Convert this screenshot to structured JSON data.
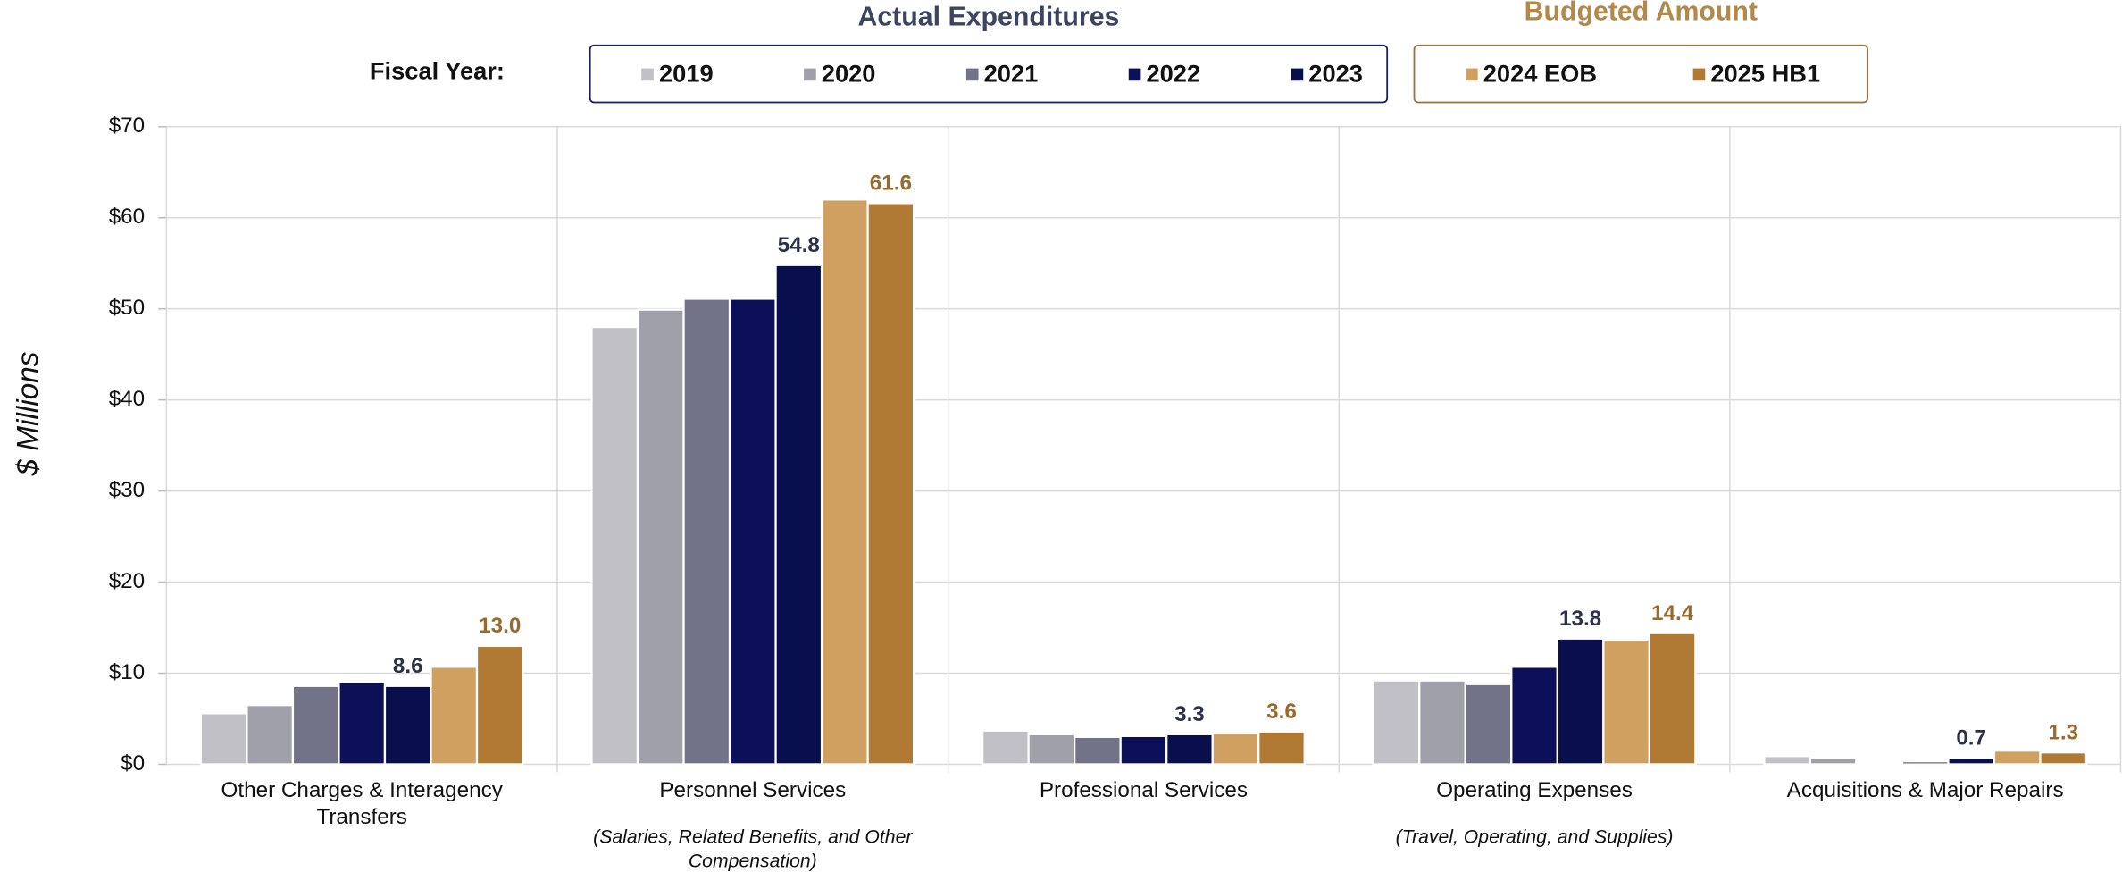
{
  "chart_data": {
    "type": "bar",
    "y_label": "$ Millions",
    "legend_label": "Fiscal Year:",
    "legend_groups": [
      {
        "title": "Actual Expenditures",
        "color": "#3a4560",
        "series": [
          0,
          1,
          2,
          3,
          4
        ]
      },
      {
        "title": "Budgeted Amount",
        "color": "#b3894a",
        "series": [
          5,
          6
        ]
      }
    ],
    "categories": [
      "Other Charges & Interagency Transfers",
      "Personnel Services",
      "Professional Services",
      "Operating Expenses",
      "Acquisitions & Major Repairs"
    ],
    "category_notes": [
      null,
      "(Salaries, Related Benefits, and Other Compensation)",
      null,
      "(Travel, Operating, and Supplies)",
      null
    ],
    "series": [
      {
        "name": "2019",
        "color": "#c0c0c6",
        "values": [
          5.6,
          48.0,
          3.7,
          9.2,
          0.9
        ]
      },
      {
        "name": "2020",
        "color": "#a0a0aa",
        "values": [
          6.5,
          49.9,
          3.3,
          9.2,
          0.7
        ]
      },
      {
        "name": "2021",
        "color": "#727388",
        "values": [
          8.6,
          51.1,
          3.0,
          8.8,
          0.2
        ]
      },
      {
        "name": "2022",
        "color": "#0c1058",
        "values": [
          9.0,
          51.1,
          3.1,
          10.7,
          0.3
        ]
      },
      {
        "name": "2023",
        "color": "#090e4c",
        "values": [
          8.6,
          54.8,
          3.3,
          13.8,
          0.7
        ],
        "value_labels": [
          "8.6",
          "54.8",
          "3.3",
          "13.8",
          "0.7"
        ],
        "label_color": "#2a3148"
      },
      {
        "name": "2024 EOB",
        "color": "#cfa060",
        "values": [
          10.7,
          62.0,
          3.5,
          13.7,
          1.5
        ]
      },
      {
        "name": "2025 HB1",
        "color": "#b07a35",
        "values": [
          13.0,
          61.6,
          3.6,
          14.4,
          1.3
        ],
        "value_labels": [
          "13.0",
          "61.6",
          "3.6",
          "14.4",
          "1.3"
        ],
        "label_color": "#9a6a2a"
      }
    ],
    "ylim": [
      0,
      70
    ],
    "yticks": [
      {
        "value": 0,
        "label": "$0"
      },
      {
        "value": 10,
        "label": "$10"
      },
      {
        "value": 20,
        "label": "$20"
      },
      {
        "value": 30,
        "label": "$30"
      },
      {
        "value": 40,
        "label": "$40"
      },
      {
        "value": 50,
        "label": "$50"
      },
      {
        "value": 60,
        "label": "$60"
      },
      {
        "value": 70,
        "label": "$70"
      }
    ],
    "grid": true
  }
}
